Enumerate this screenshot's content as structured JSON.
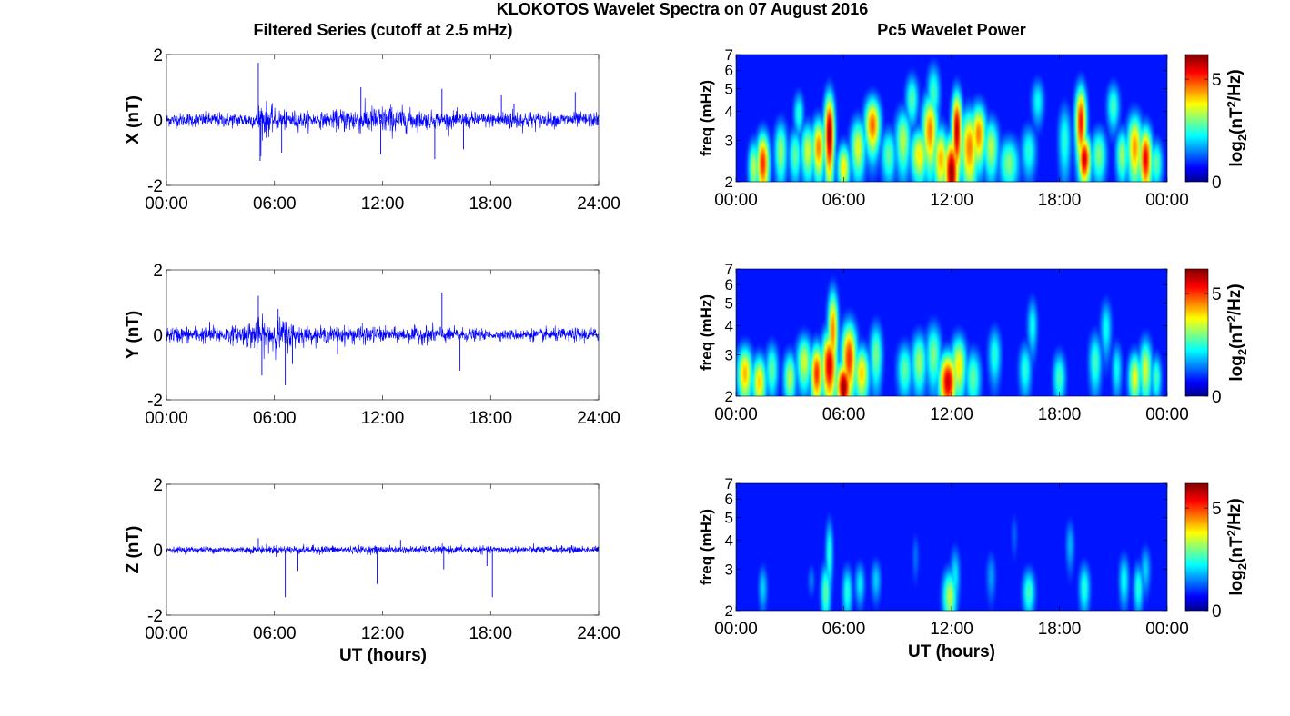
{
  "figure": {
    "title": "KLOKOTOS Wavelet Spectra on 07 August 2016",
    "left_title": "Filtered Series (cutoff at 2.5 mHz)",
    "right_title": "Pc5 Wavelet Power",
    "xlabel": "UT (hours)"
  },
  "colormap": "jet",
  "chart_data": [
    {
      "type": "line",
      "component": "X",
      "ylabel": "X (nT)",
      "ylim": [
        -2,
        2
      ],
      "yticks": [
        "-2",
        "0",
        "2"
      ],
      "xlim_hours": [
        0,
        24
      ],
      "xticks": [
        "00:00",
        "06:00",
        "12:00",
        "18:00",
        "24:00"
      ],
      "line_color": "#0000ff",
      "noise_envelope_nT": [
        [
          0,
          0.18
        ],
        [
          5,
          0.22
        ],
        [
          5.2,
          0.6
        ],
        [
          6,
          0.3
        ],
        [
          8,
          0.22
        ],
        [
          9,
          0.2
        ],
        [
          10,
          0.35
        ],
        [
          12.5,
          0.4
        ],
        [
          14,
          0.25
        ],
        [
          18,
          0.2
        ],
        [
          19,
          0.3
        ],
        [
          21,
          0.2
        ],
        [
          24,
          0.2
        ]
      ],
      "spikes": [
        [
          5.1,
          1.75
        ],
        [
          5.2,
          -1.25
        ],
        [
          6.4,
          -1.0
        ],
        [
          10.8,
          1.0
        ],
        [
          11.9,
          -1.05
        ],
        [
          14.9,
          -1.2
        ],
        [
          15.3,
          0.95
        ],
        [
          16.5,
          -0.9
        ],
        [
          18.6,
          0.75
        ],
        [
          22.7,
          0.85
        ],
        [
          19.3,
          0.5
        ]
      ]
    },
    {
      "type": "line",
      "component": "Y",
      "ylabel": "Y (nT)",
      "ylim": [
        -2,
        2
      ],
      "yticks": [
        "-2",
        "0",
        "2"
      ],
      "xlim_hours": [
        0,
        24
      ],
      "xticks": [
        "00:00",
        "06:00",
        "12:00",
        "18:00",
        "24:00"
      ],
      "line_color": "#0000ff",
      "noise_envelope_nT": [
        [
          0,
          0.22
        ],
        [
          4,
          0.25
        ],
        [
          5,
          0.45
        ],
        [
          6.5,
          0.45
        ],
        [
          8,
          0.2
        ],
        [
          11,
          0.25
        ],
        [
          12.5,
          0.18
        ],
        [
          15,
          0.25
        ],
        [
          18,
          0.12
        ],
        [
          21,
          0.18
        ],
        [
          24,
          0.2
        ]
      ],
      "spikes": [
        [
          5.1,
          1.2
        ],
        [
          5.3,
          -1.25
        ],
        [
          6.2,
          0.8
        ],
        [
          6.6,
          -1.55
        ],
        [
          7.0,
          -0.9
        ],
        [
          15.3,
          1.3
        ],
        [
          16.3,
          -1.1
        ],
        [
          9.5,
          -0.6
        ],
        [
          2.4,
          0.4
        ]
      ]
    },
    {
      "type": "line",
      "component": "Z",
      "ylabel": "Z (nT)",
      "ylim": [
        -2,
        2
      ],
      "yticks": [
        "-2",
        "0",
        "2"
      ],
      "xlim_hours": [
        0,
        24
      ],
      "xticks": [
        "00:00",
        "06:00",
        "12:00",
        "18:00",
        "24:00"
      ],
      "line_color": "#0000ff",
      "noise_envelope_nT": [
        [
          0,
          0.08
        ],
        [
          5,
          0.1
        ],
        [
          6,
          0.12
        ],
        [
          12,
          0.1
        ],
        [
          18,
          0.1
        ],
        [
          24,
          0.1
        ]
      ],
      "spikes": [
        [
          5.1,
          0.35
        ],
        [
          6.6,
          -1.45
        ],
        [
          7.3,
          -0.65
        ],
        [
          11.7,
          -1.05
        ],
        [
          15.4,
          -0.6
        ],
        [
          18.1,
          -1.45
        ],
        [
          17.8,
          -0.5
        ],
        [
          13.0,
          0.3
        ]
      ]
    },
    {
      "type": "heatmap",
      "component": "X",
      "ylabel": "freq (mHz)",
      "yscale": "log",
      "ylim_mHz": [
        2,
        7
      ],
      "yticks": [
        "2",
        "3",
        "4",
        "5",
        "6",
        "7"
      ],
      "xlim_hours": [
        0,
        24
      ],
      "xticks": [
        "00:00",
        "06:00",
        "12:00",
        "18:00",
        "00:00"
      ],
      "colorbar_label": "log2(nT^2/Hz)",
      "colorbar_ticks": [
        "0",
        "5"
      ],
      "clim": [
        0,
        6.2
      ],
      "blobs": [
        [
          1.0,
          2.3,
          0.22,
          0.45,
          3.2
        ],
        [
          1.5,
          2.4,
          0.25,
          0.55,
          5.2
        ],
        [
          2.5,
          2.7,
          0.25,
          0.6,
          3.0
        ],
        [
          3.3,
          2.6,
          0.25,
          0.5,
          2.6
        ],
        [
          4.0,
          2.7,
          0.28,
          0.55,
          3.4
        ],
        [
          4.6,
          2.8,
          0.25,
          0.6,
          4.6
        ],
        [
          5.2,
          3.2,
          0.2,
          1.0,
          6.2
        ],
        [
          6.0,
          2.3,
          0.25,
          0.4,
          3.8
        ],
        [
          6.8,
          2.8,
          0.3,
          0.6,
          3.5
        ],
        [
          7.6,
          3.5,
          0.3,
          0.7,
          4.8
        ],
        [
          8.5,
          2.6,
          0.3,
          0.5,
          2.6
        ],
        [
          9.3,
          3.0,
          0.3,
          0.7,
          3.2
        ],
        [
          10.2,
          2.6,
          0.35,
          0.5,
          3.8
        ],
        [
          10.8,
          3.3,
          0.3,
          0.9,
          4.6
        ],
        [
          11.4,
          2.5,
          0.3,
          0.6,
          4.2
        ],
        [
          12.0,
          2.2,
          0.3,
          0.6,
          6.2
        ],
        [
          12.3,
          3.3,
          0.2,
          1.0,
          6.0
        ],
        [
          13.0,
          2.8,
          0.35,
          0.8,
          4.6
        ],
        [
          13.5,
          3.2,
          0.3,
          0.7,
          4.6
        ],
        [
          14.2,
          2.8,
          0.3,
          0.6,
          3.2
        ],
        [
          15.2,
          2.4,
          0.4,
          0.45,
          2.8
        ],
        [
          16.3,
          2.7,
          0.3,
          0.5,
          2.2
        ],
        [
          18.3,
          3.0,
          0.25,
          0.8,
          2.2
        ],
        [
          19.4,
          2.5,
          0.25,
          0.45,
          5.8
        ],
        [
          19.2,
          3.6,
          0.22,
          1.0,
          5.4
        ],
        [
          20.2,
          2.6,
          0.3,
          0.5,
          2.8
        ],
        [
          21.5,
          2.6,
          0.25,
          0.5,
          3.0
        ],
        [
          22.2,
          2.8,
          0.3,
          0.7,
          4.4
        ],
        [
          22.8,
          2.5,
          0.25,
          0.6,
          5.6
        ],
        [
          23.4,
          2.4,
          0.25,
          0.4,
          2.6
        ],
        [
          3.5,
          3.9,
          0.2,
          0.6,
          2.2
        ],
        [
          9.8,
          4.5,
          0.25,
          0.8,
          2.5
        ],
        [
          11.0,
          4.8,
          0.25,
          1.0,
          2.4
        ],
        [
          16.8,
          4.4,
          0.25,
          0.7,
          2.0
        ],
        [
          21.0,
          4.2,
          0.25,
          0.7,
          2.4
        ]
      ]
    },
    {
      "type": "heatmap",
      "component": "Y",
      "ylabel": "freq (mHz)",
      "yscale": "log",
      "ylim_mHz": [
        2,
        7
      ],
      "yticks": [
        "2",
        "3",
        "4",
        "5",
        "6",
        "7"
      ],
      "xlim_hours": [
        0,
        24
      ],
      "xticks": [
        "00:00",
        "06:00",
        "12:00",
        "18:00",
        "00:00"
      ],
      "colorbar_label": "log2(nT^2/Hz)",
      "colorbar_ticks": [
        "0",
        "5"
      ],
      "clim": [
        0,
        6.2
      ],
      "blobs": [
        [
          0.5,
          2.5,
          0.3,
          0.5,
          4.2
        ],
        [
          1.3,
          2.3,
          0.28,
          0.45,
          4.0
        ],
        [
          2.0,
          2.6,
          0.25,
          0.5,
          2.6
        ],
        [
          3.0,
          2.4,
          0.25,
          0.45,
          3.2
        ],
        [
          3.8,
          2.8,
          0.3,
          0.55,
          3.4
        ],
        [
          4.5,
          2.5,
          0.25,
          0.55,
          5.2
        ],
        [
          5.2,
          2.7,
          0.3,
          0.7,
          5.8
        ],
        [
          5.4,
          3.8,
          0.2,
          1.2,
          4.6
        ],
        [
          6.0,
          2.2,
          0.3,
          0.4,
          6.2
        ],
        [
          6.3,
          2.9,
          0.3,
          0.8,
          5.2
        ],
        [
          7.0,
          2.5,
          0.3,
          0.5,
          4.0
        ],
        [
          7.8,
          3.0,
          0.25,
          0.7,
          2.8
        ],
        [
          9.4,
          2.6,
          0.3,
          0.5,
          2.6
        ],
        [
          10.2,
          2.8,
          0.3,
          0.6,
          3.0
        ],
        [
          11.0,
          3.0,
          0.3,
          0.7,
          2.8
        ],
        [
          11.8,
          2.3,
          0.35,
          0.5,
          5.8
        ],
        [
          12.4,
          2.7,
          0.3,
          0.6,
          3.8
        ],
        [
          13.2,
          2.4,
          0.3,
          0.5,
          2.6
        ],
        [
          14.4,
          3.0,
          0.25,
          0.6,
          2.2
        ],
        [
          16.1,
          2.6,
          0.25,
          0.5,
          2.2
        ],
        [
          18.0,
          2.4,
          0.25,
          0.45,
          2.4
        ],
        [
          20.0,
          2.8,
          0.25,
          0.6,
          2.4
        ],
        [
          21.2,
          2.6,
          0.2,
          0.5,
          2.0
        ],
        [
          22.2,
          2.4,
          0.25,
          0.45,
          3.6
        ],
        [
          22.8,
          2.6,
          0.25,
          0.6,
          3.4
        ],
        [
          23.4,
          2.4,
          0.2,
          0.4,
          2.4
        ],
        [
          16.5,
          4.0,
          0.2,
          0.8,
          2.0
        ],
        [
          20.6,
          3.9,
          0.22,
          0.8,
          2.0
        ]
      ]
    },
    {
      "type": "heatmap",
      "component": "Z",
      "ylabel": "freq (mHz)",
      "yscale": "log",
      "ylim_mHz": [
        2,
        7
      ],
      "yticks": [
        "2",
        "3",
        "4",
        "5",
        "6",
        "7"
      ],
      "xlim_hours": [
        0,
        24
      ],
      "xticks": [
        "00:00",
        "06:00",
        "12:00",
        "18:00",
        "00:00"
      ],
      "colorbar_label": "log2(nT^2/Hz)",
      "colorbar_ticks": [
        "0",
        "5"
      ],
      "clim": [
        0,
        6.2
      ],
      "blobs": [
        [
          1.5,
          2.5,
          0.18,
          0.4,
          1.6
        ],
        [
          4.2,
          2.7,
          0.15,
          0.3,
          1.0
        ],
        [
          5.0,
          2.4,
          0.2,
          0.5,
          2.6
        ],
        [
          5.2,
          3.5,
          0.15,
          0.9,
          2.2
        ],
        [
          6.2,
          2.4,
          0.2,
          0.45,
          2.2
        ],
        [
          6.9,
          2.6,
          0.2,
          0.4,
          1.8
        ],
        [
          7.8,
          2.7,
          0.2,
          0.4,
          1.6
        ],
        [
          11.9,
          2.3,
          0.28,
          0.45,
          3.2
        ],
        [
          12.2,
          2.8,
          0.2,
          0.6,
          1.8
        ],
        [
          14.2,
          2.8,
          0.2,
          0.5,
          1.2
        ],
        [
          16.3,
          2.4,
          0.25,
          0.4,
          2.4
        ],
        [
          19.4,
          2.5,
          0.22,
          0.45,
          2.2
        ],
        [
          18.6,
          3.8,
          0.18,
          0.7,
          1.4
        ],
        [
          21.6,
          2.7,
          0.2,
          0.5,
          2.0
        ],
        [
          22.4,
          2.5,
          0.2,
          0.45,
          2.2
        ],
        [
          22.8,
          3.0,
          0.2,
          0.5,
          1.6
        ],
        [
          10.0,
          3.4,
          0.15,
          0.6,
          0.9
        ],
        [
          15.5,
          4.2,
          0.15,
          0.7,
          0.8
        ]
      ]
    }
  ]
}
